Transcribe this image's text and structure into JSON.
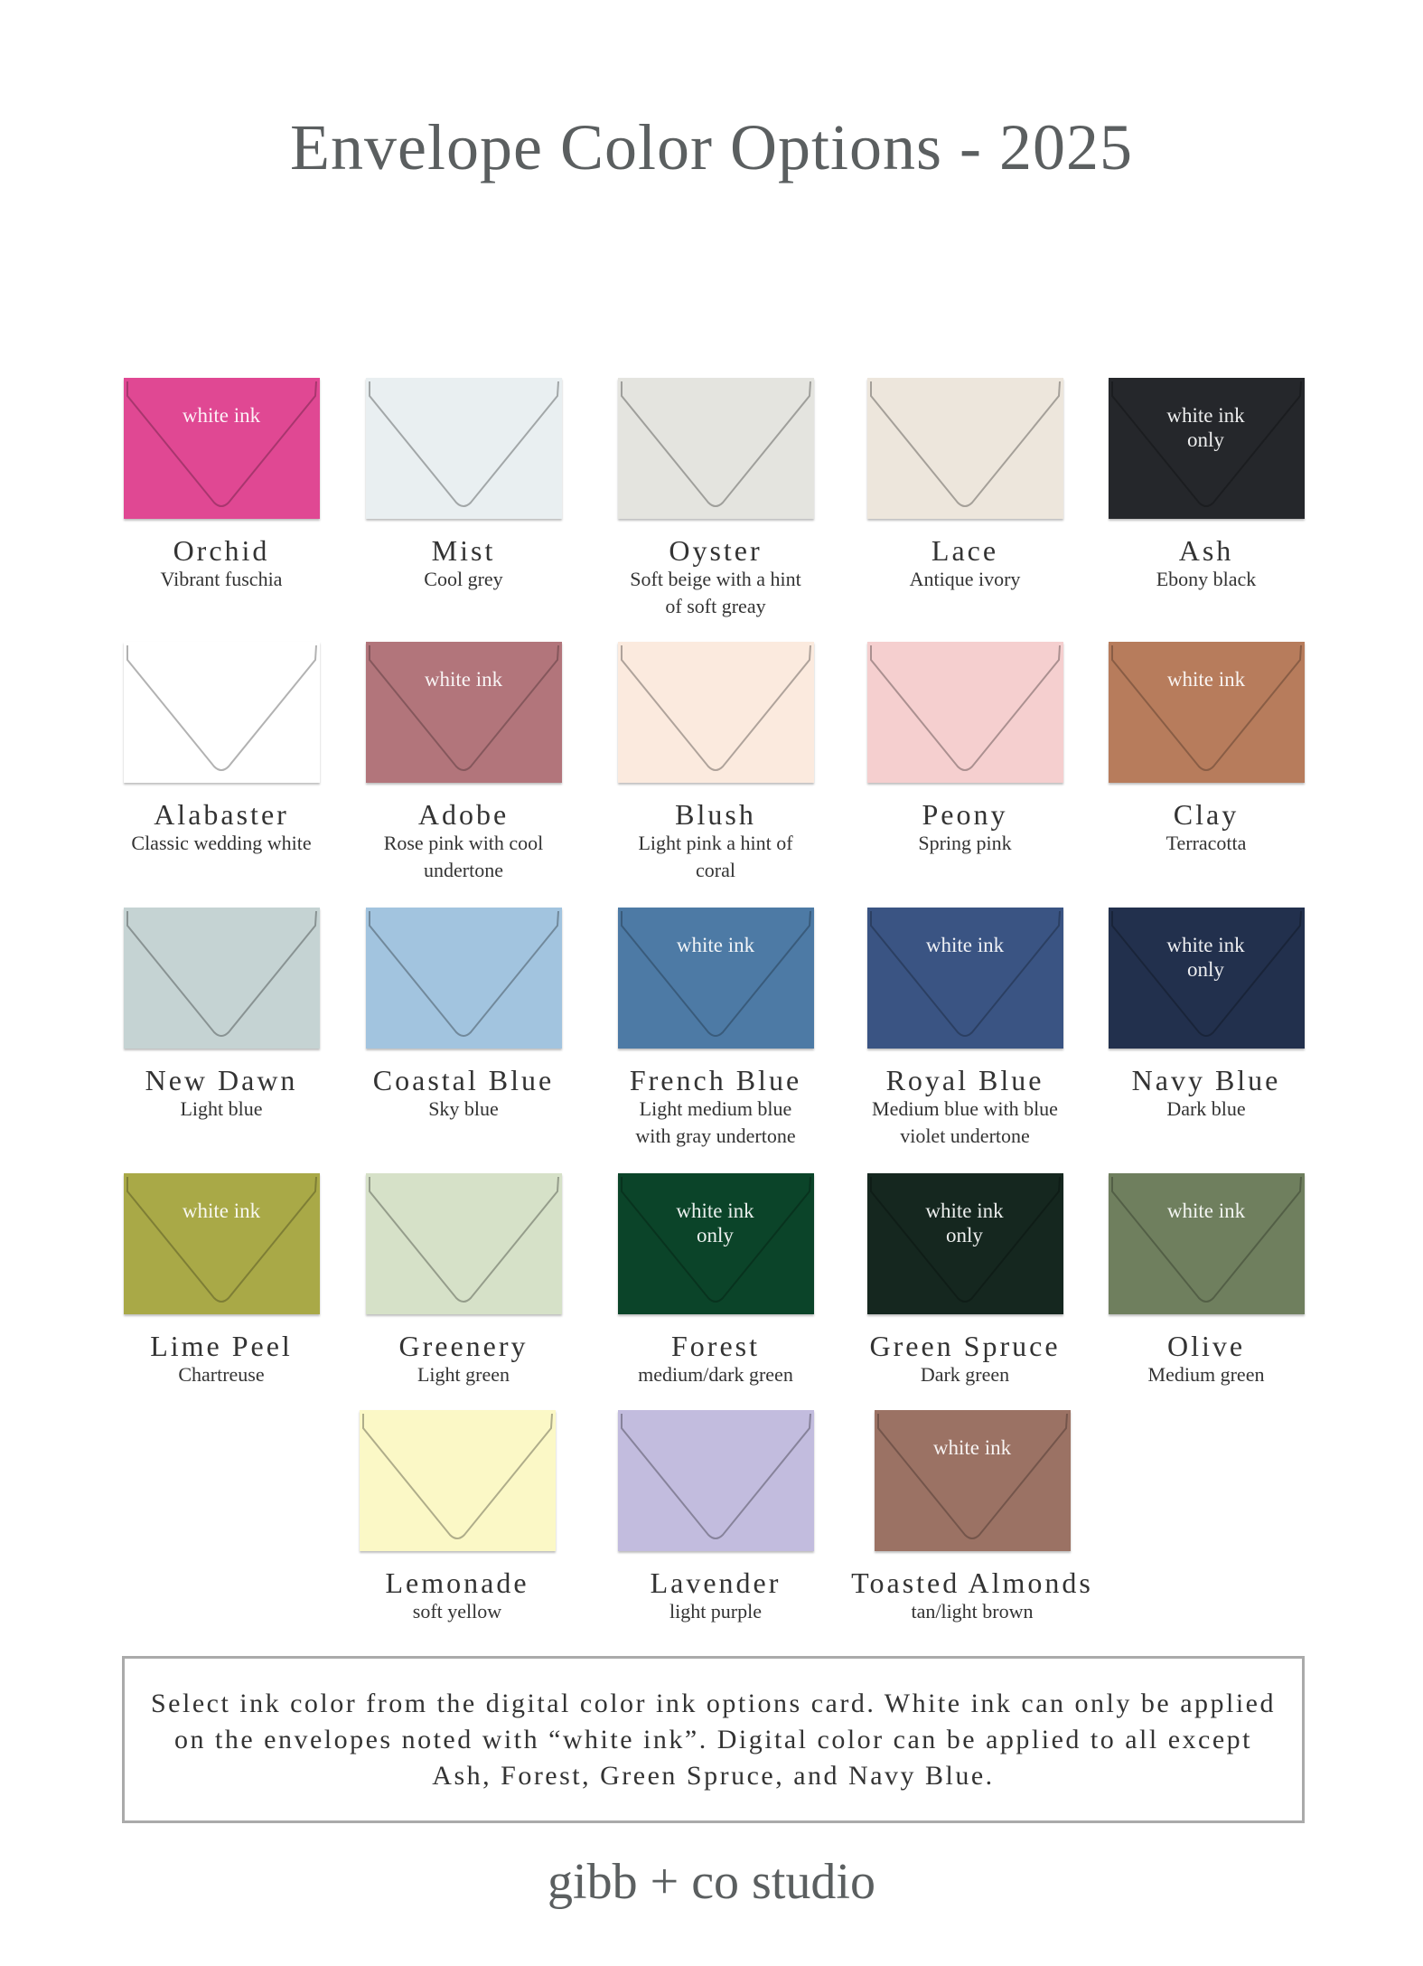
{
  "title": "Envelope Color Options - 2025",
  "envelopes": [
    {
      "name": "Orchid",
      "description": "Vibrant fuschia",
      "ink": "white ink",
      "color": "#e04893"
    },
    {
      "name": "Mist",
      "description": "Cool grey",
      "ink": "",
      "color": "#e9eff1"
    },
    {
      "name": "Oyster",
      "description": "Soft beige with a hint of soft greay",
      "ink": "",
      "color": "#e4e4df"
    },
    {
      "name": "Lace",
      "description": "Antique ivory",
      "ink": "",
      "color": "#ede6dc"
    },
    {
      "name": "Ash",
      "description": "Ebony black",
      "ink": "white ink only",
      "color": "#25272b"
    },
    {
      "name": "Alabaster",
      "description": "Classic wedding white",
      "ink": "",
      "color": "#ffffff"
    },
    {
      "name": "Adobe",
      "description": "Rose pink with cool undertone",
      "ink": "white ink",
      "color": "#b2757b"
    },
    {
      "name": "Blush",
      "description": "Light pink a hint of coral",
      "ink": "",
      "color": "#fbeade"
    },
    {
      "name": "Peony",
      "description": "Spring pink",
      "ink": "",
      "color": "#f5cfcf"
    },
    {
      "name": "Clay",
      "description": "Terracotta",
      "ink": "white ink",
      "color": "#b77c5c"
    },
    {
      "name": "New Dawn",
      "description": "Light blue",
      "ink": "",
      "color": "#c5d3d3"
    },
    {
      "name": "Coastal Blue",
      "description": "Sky blue",
      "ink": "",
      "color": "#a2c4df"
    },
    {
      "name": "French Blue",
      "description": "Light medium blue with gray undertone",
      "ink": "white ink",
      "color": "#4d7aa5"
    },
    {
      "name": "Royal Blue",
      "description": "Medium blue with blue violet undertone",
      "ink": "white ink",
      "color": "#3a5483"
    },
    {
      "name": "Navy Blue",
      "description": "Dark blue",
      "ink": "white ink only",
      "color": "#22304d"
    },
    {
      "name": "Lime Peel",
      "description": "Chartreuse",
      "ink": "white ink",
      "color": "#a9a947"
    },
    {
      "name": "Greenery",
      "description": "Light green",
      "ink": "",
      "color": "#d6e1c8"
    },
    {
      "name": "Forest",
      "description": "medium/dark green",
      "ink": "white ink only",
      "color": "#0b4429"
    },
    {
      "name": "Green Spruce",
      "description": "Dark green",
      "ink": "white ink only",
      "color": "#15271f"
    },
    {
      "name": "Olive",
      "description": "Medium green",
      "ink": "white ink",
      "color": "#6f7f5e"
    },
    {
      "name": "Lemonade",
      "description": "soft yellow",
      "ink": "",
      "color": "#fbf8c6"
    },
    {
      "name": "Lavender",
      "description": "light purple",
      "ink": "",
      "color": "#c2bcde"
    },
    {
      "name": "Toasted Almonds",
      "description": "tan/light brown",
      "ink": "white ink",
      "color": "#9b7264"
    }
  ],
  "note": "Select ink color from the digital color ink options card. White ink can only be applied on the envelopes noted with “white ink”.  Digital color can be applied to all except Ash, Forest, Green Spruce, and Navy Blue.",
  "brand": "gibb + co studio"
}
